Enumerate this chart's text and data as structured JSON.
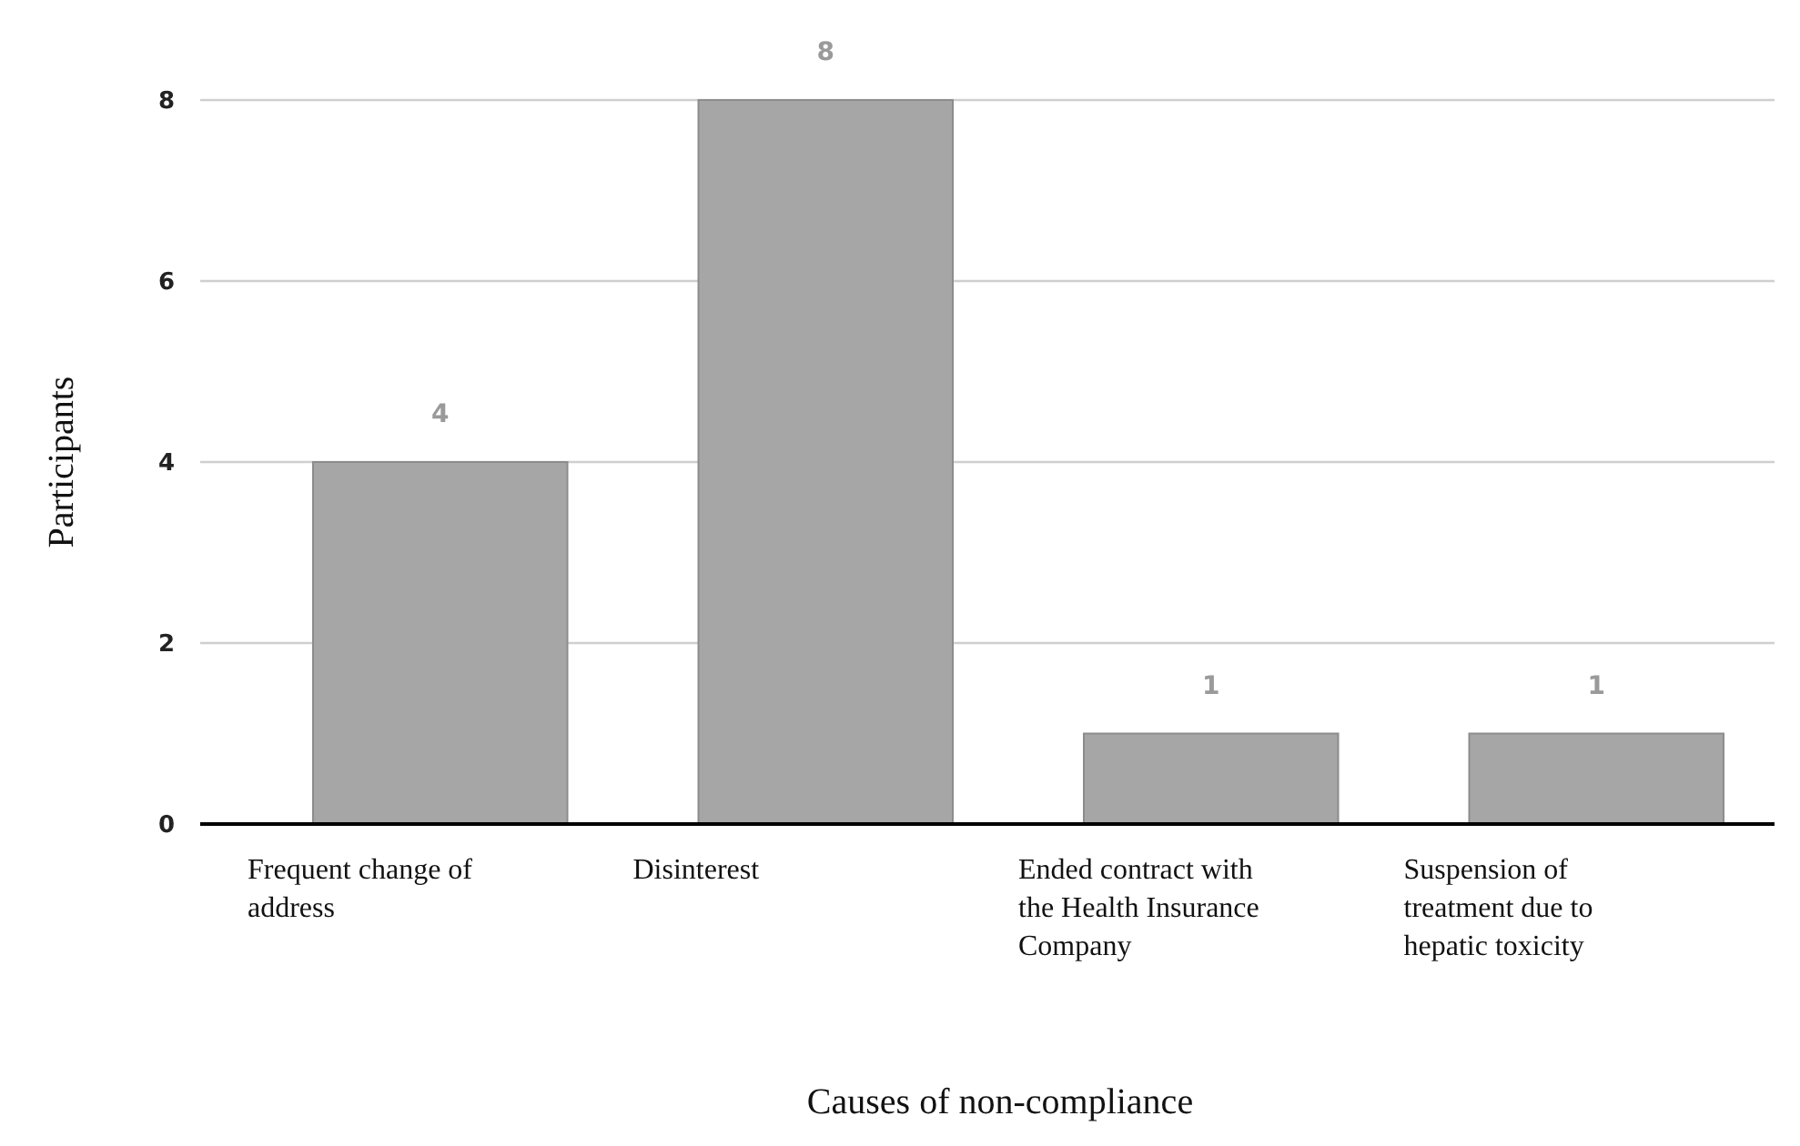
{
  "chart_data": {
    "type": "bar",
    "xlabel": "Causes of non-compliance",
    "ylabel": "Participants",
    "categories": [
      "Frequent change of address",
      "Disinterest",
      "Ended contract with the Health Insurance Company",
      "Suspension of treatment due to hepatic toxicity"
    ],
    "values": [
      4,
      8,
      1,
      1
    ],
    "color": "#a6a6a6",
    "ylim": [
      0,
      8
    ],
    "yticks": [
      0,
      2,
      4,
      6,
      8
    ],
    "grid": "y",
    "data_labels": true
  }
}
